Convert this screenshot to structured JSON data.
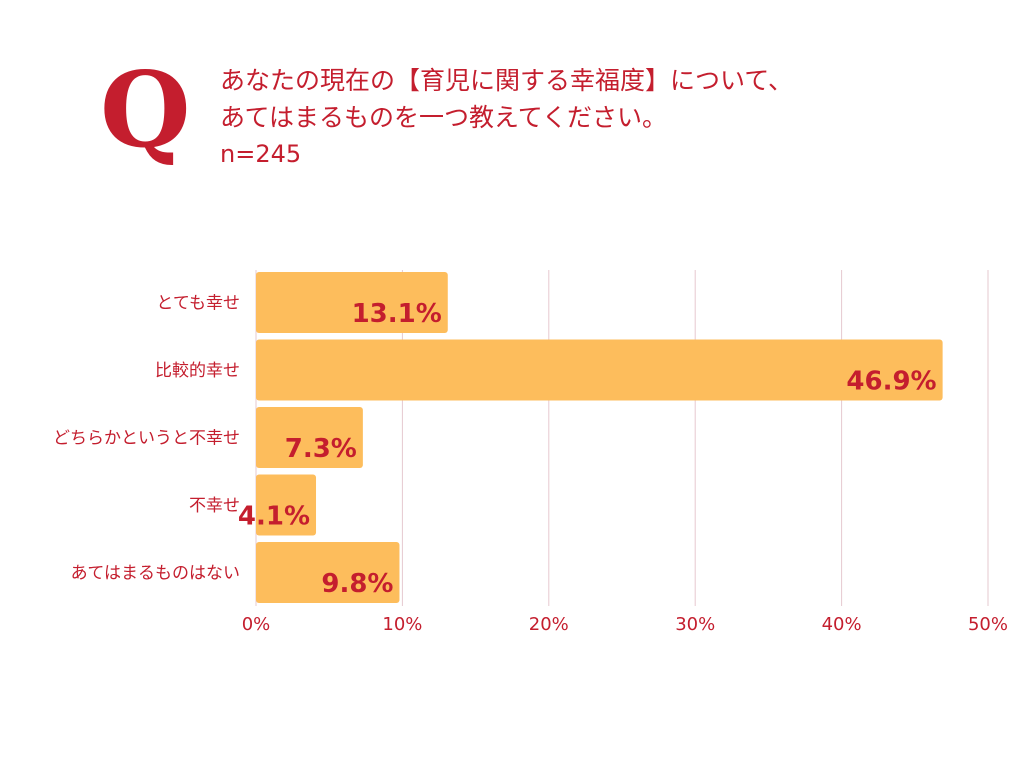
{
  "q_mark": "Q",
  "question": {
    "line1": "あなたの現在の【育児に関する幸福度】について、",
    "line2": "あてはまるものを一つ教えてください。",
    "sample_size": "n=245"
  },
  "colors": {
    "accent": "#c41e2e",
    "bar": "#fdbd5c",
    "grid": "#e6c9cf"
  },
  "chart_data": {
    "type": "bar",
    "orientation": "horizontal",
    "categories": [
      "とても幸せ",
      "比較的幸せ",
      "どちらかというと不幸せ",
      "不幸せ",
      "あてはまるものはない"
    ],
    "values": [
      13.1,
      46.9,
      7.3,
      4.1,
      9.8
    ],
    "value_labels": [
      "13.1%",
      "46.9%",
      "7.3%",
      "4.1%",
      "9.8%"
    ],
    "xlim": [
      0,
      50
    ],
    "xticks": [
      0,
      10,
      20,
      30,
      40,
      50
    ],
    "xtick_labels": [
      "0%",
      "10%",
      "20%",
      "30%",
      "40%",
      "50%"
    ],
    "grid": true,
    "title": "",
    "xlabel": "",
    "ylabel": ""
  }
}
